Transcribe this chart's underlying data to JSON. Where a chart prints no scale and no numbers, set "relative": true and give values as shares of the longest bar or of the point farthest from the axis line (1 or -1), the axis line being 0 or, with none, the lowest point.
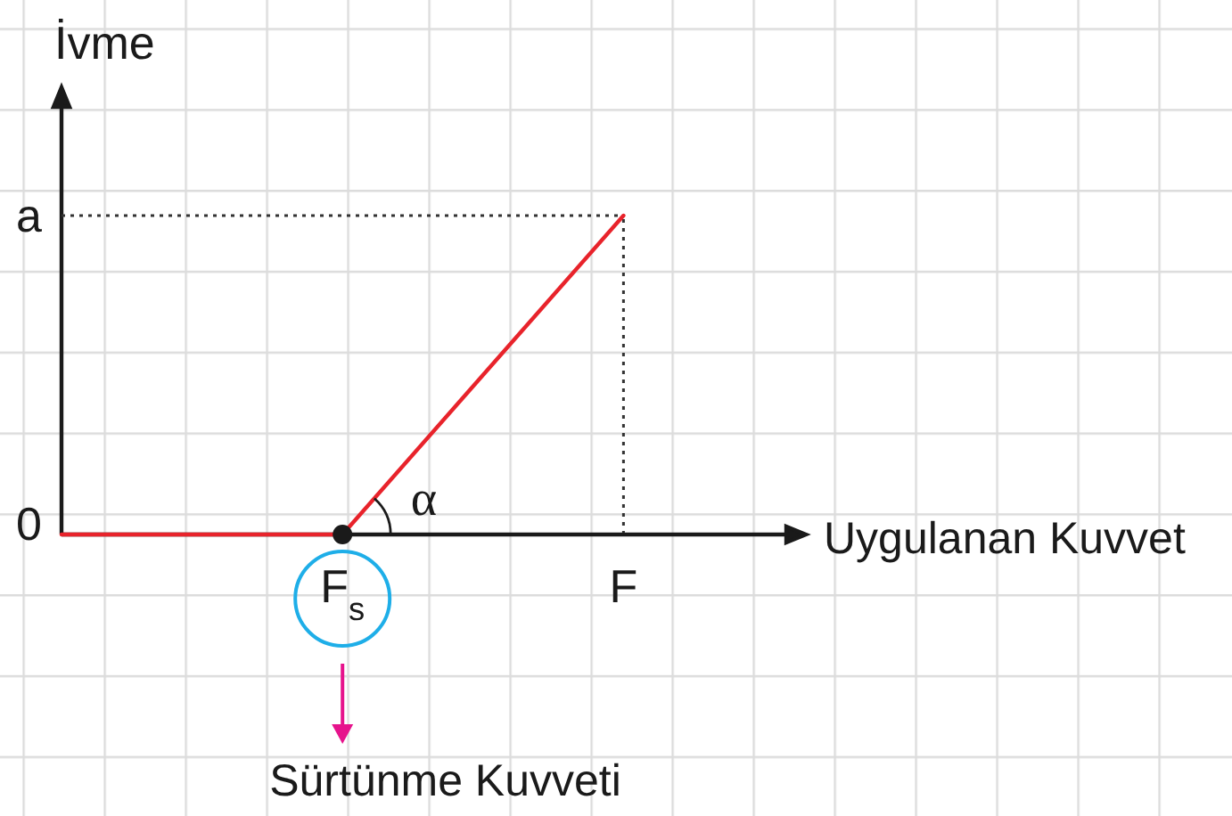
{
  "chart_data": {
    "type": "line",
    "xlabel": "Uygulanan Kuvvet",
    "ylabel": "İvme",
    "relative": true,
    "categories": [
      "0",
      "F$_{s}$",
      "F"
    ],
    "marker": "none",
    "line_style": "solid",
    "series": [
      {
        "color": "#e8232b",
        "values": [
          0,
          0,
          1
        ]
      },
      {
        "name": "a",
        "color": "#333333",
        "line_style": "dotted",
        "values": [
          1,
          1,
          1
        ]
      },
      {
        "type": "scatter",
        "color": "#1a1a1a",
        "marker": "circle",
        "values": [
          null,
          0,
          null
        ]
      }
    ],
    "ref_lines": [
      {
        "axis": "x",
        "value": "F",
        "color": "#333333",
        "line_style": "dotted"
      }
    ],
    "annotations": [
      {
        "text": "α",
        "x": "F$_{s}$",
        "y": 0
      },
      "Sürtünme Kuvveti"
    ]
  }
}
